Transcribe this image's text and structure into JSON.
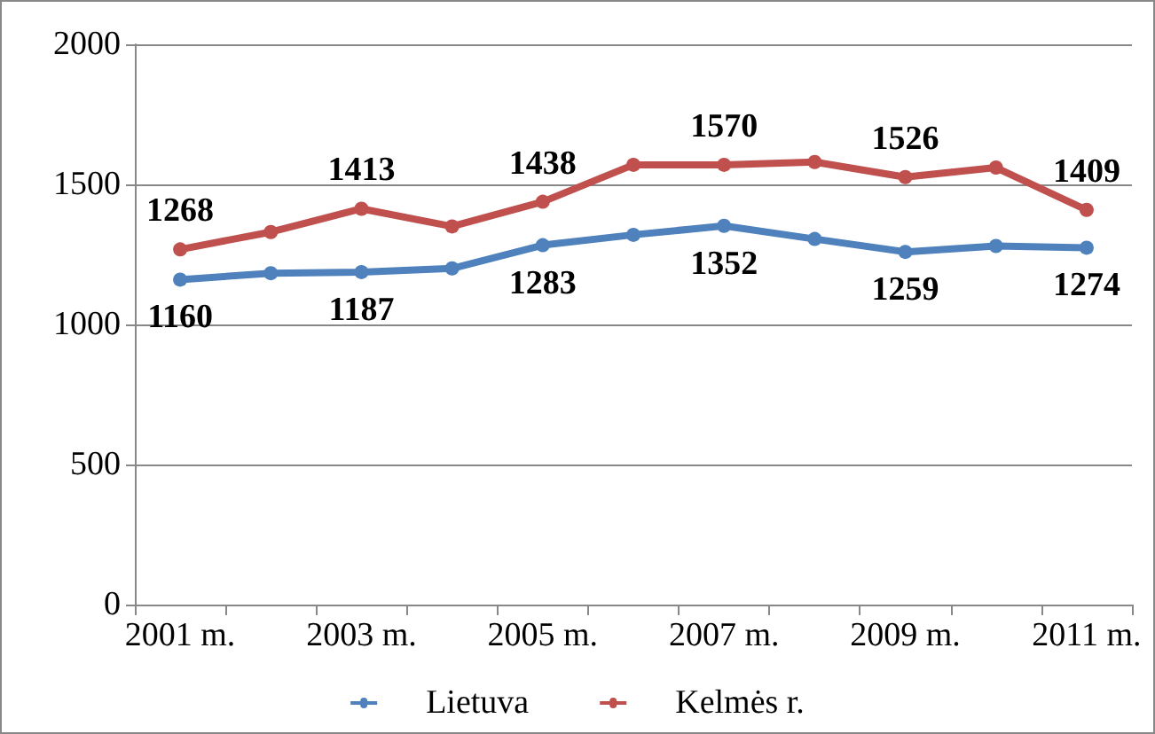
{
  "chart_data": {
    "type": "line",
    "categories": [
      "2001 m.",
      null,
      "2003 m.",
      null,
      "2005 m.",
      null,
      "2007 m.",
      null,
      "2009 m.",
      null,
      "2011 m."
    ],
    "series": [
      {
        "name": "Lietuva",
        "color": "#4f81bd",
        "values": [
          1160,
          1183,
          1187,
          1200,
          1283,
          1320,
          1352,
          1305,
          1259,
          1280,
          1274
        ],
        "value_labels": [
          "1160",
          null,
          "1187",
          null,
          "1283",
          null,
          "1352",
          null,
          "1259",
          null,
          "1274"
        ]
      },
      {
        "name": "Kelmės r.",
        "color": "#c0504d",
        "values": [
          1268,
          1330,
          1413,
          1350,
          1438,
          1570,
          1570,
          1580,
          1526,
          1560,
          1409
        ],
        "value_labels": [
          "1268",
          null,
          "1413",
          null,
          "1438",
          null,
          "1570",
          null,
          "1526",
          null,
          "1409"
        ]
      }
    ],
    "ylim": [
      0,
      2000
    ],
    "yticks": [
      0,
      500,
      1000,
      1500,
      2000
    ],
    "grid": "y",
    "legend": "bottom",
    "marker": "circle",
    "line_style": "solid"
  }
}
